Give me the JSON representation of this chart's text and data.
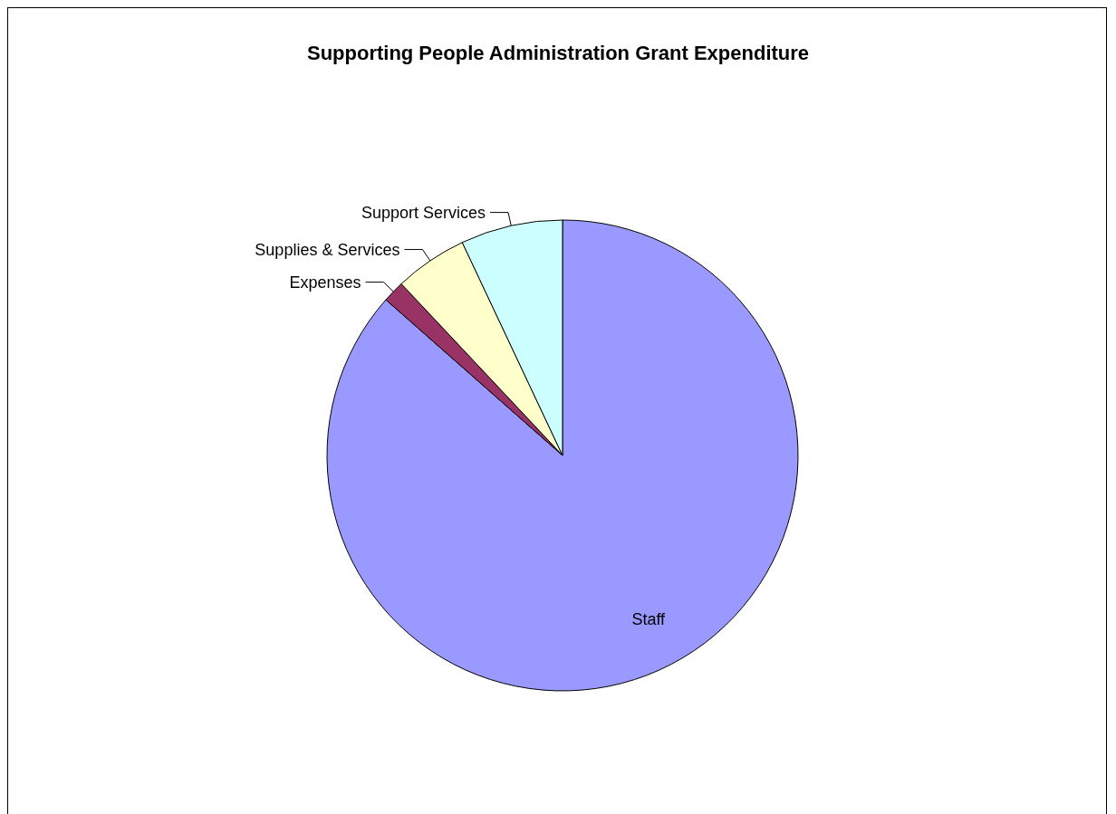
{
  "chart_data": {
    "type": "pie",
    "title": "Supporting People Administration Grant Expenditure",
    "categories": [
      "Staff",
      "Expenses",
      "Supplies & Services",
      "Support Services"
    ],
    "values": [
      86.5,
      1.5,
      5.0,
      7.0
    ],
    "colors": [
      "#9999ff",
      "#993366",
      "#ffffcc",
      "#ccffff"
    ],
    "legend": false
  }
}
